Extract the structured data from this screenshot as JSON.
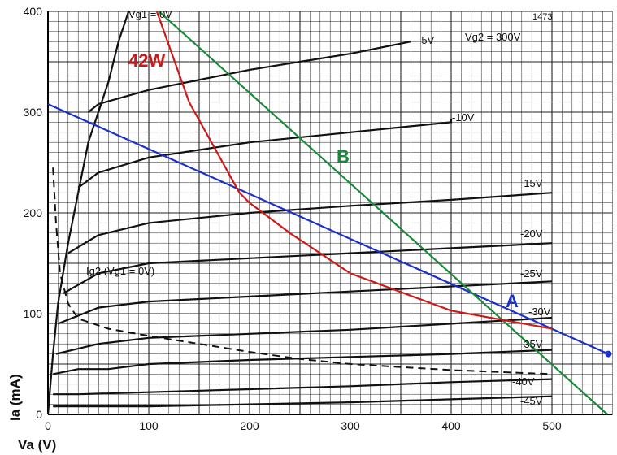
{
  "chart_data": {
    "type": "line",
    "xlabel": "Va (V)",
    "ylabel": "Ia (mA)",
    "xlim": [
      0,
      560
    ],
    "ylim": [
      0,
      400
    ],
    "x_ticks": [
      "0",
      "100",
      "200",
      "300",
      "400",
      "500"
    ],
    "y_ticks": [
      "0",
      "100",
      "200",
      "300",
      "400"
    ],
    "ref_number": "1473",
    "screen_voltage_label": "Vg2 = 300V",
    "grid": true,
    "characteristic_curves": [
      {
        "name": "Vg1 = 0V",
        "label_text": "Vg1 = 0V",
        "points": [
          [
            0,
            0
          ],
          [
            5,
            60
          ],
          [
            10,
            110
          ],
          [
            20,
            170
          ],
          [
            30,
            220
          ],
          [
            40,
            270
          ],
          [
            50,
            300
          ],
          [
            60,
            330
          ],
          [
            70,
            370
          ],
          [
            80,
            400
          ]
        ]
      },
      {
        "name": "-5V",
        "label_text": "-5V",
        "points": [
          [
            40,
            300
          ],
          [
            50,
            308
          ],
          [
            100,
            322
          ],
          [
            200,
            342
          ],
          [
            300,
            358
          ],
          [
            360,
            370
          ]
        ]
      },
      {
        "name": "-10V",
        "label_text": "-10V",
        "points": [
          [
            30,
            225
          ],
          [
            50,
            240
          ],
          [
            100,
            255
          ],
          [
            200,
            270
          ],
          [
            300,
            280
          ],
          [
            400,
            290
          ],
          [
            400,
            293
          ]
        ]
      },
      {
        "name": "-15V",
        "label_text": "-15V",
        "points": [
          [
            20,
            160
          ],
          [
            50,
            178
          ],
          [
            100,
            190
          ],
          [
            200,
            200
          ],
          [
            300,
            207
          ],
          [
            400,
            213
          ],
          [
            500,
            220
          ]
        ]
      },
      {
        "name": "-20V",
        "label_text": "-20V",
        "points": [
          [
            15,
            120
          ],
          [
            50,
            140
          ],
          [
            100,
            150
          ],
          [
            200,
            155
          ],
          [
            300,
            160
          ],
          [
            400,
            165
          ],
          [
            500,
            170
          ]
        ]
      },
      {
        "name": "-25V",
        "label_text": "-25V",
        "points": [
          [
            10,
            90
          ],
          [
            50,
            106
          ],
          [
            100,
            112
          ],
          [
            200,
            117
          ],
          [
            300,
            122
          ],
          [
            400,
            127
          ],
          [
            500,
            132
          ]
        ]
      },
      {
        "name": "-30V",
        "label_text": "-30V",
        "points": [
          [
            8,
            60
          ],
          [
            50,
            70
          ],
          [
            100,
            76
          ],
          [
            200,
            80
          ],
          [
            300,
            84
          ],
          [
            400,
            90
          ],
          [
            500,
            96
          ]
        ]
      },
      {
        "name": "-35V",
        "label_text": "-35V",
        "points": [
          [
            5,
            40
          ],
          [
            30,
            45
          ],
          [
            60,
            45
          ],
          [
            100,
            50
          ],
          [
            200,
            54
          ],
          [
            300,
            57
          ],
          [
            400,
            60
          ],
          [
            500,
            64
          ]
        ]
      },
      {
        "name": "-40V",
        "label_text": "-40V",
        "points": [
          [
            5,
            20
          ],
          [
            30,
            20
          ],
          [
            100,
            22
          ],
          [
            200,
            25
          ],
          [
            300,
            28
          ],
          [
            400,
            32
          ],
          [
            500,
            35
          ]
        ]
      },
      {
        "name": "-45V",
        "label_text": "-45V",
        "points": [
          [
            5,
            8
          ],
          [
            30,
            8
          ],
          [
            100,
            8
          ],
          [
            200,
            10
          ],
          [
            300,
            12
          ],
          [
            400,
            15
          ],
          [
            500,
            18
          ]
        ]
      }
    ],
    "screen_current_curve": {
      "name": "Ig2 (Vg1 = 0V)",
      "label_text": "Ig2 (Vg1 = 0V)",
      "points": [
        [
          5,
          245
        ],
        [
          8,
          190
        ],
        [
          12,
          140
        ],
        [
          20,
          110
        ],
        [
          30,
          95
        ],
        [
          60,
          85
        ],
        [
          100,
          78
        ],
        [
          150,
          70
        ],
        [
          200,
          62
        ],
        [
          250,
          55
        ],
        [
          300,
          50
        ],
        [
          400,
          44
        ],
        [
          500,
          40
        ]
      ]
    },
    "load_lines": [
      {
        "name": "A",
        "color": "#1a2fcc",
        "points": [
          [
            0,
            308
          ],
          [
            556,
            60
          ]
        ],
        "endpoint": [
          556,
          60
        ]
      },
      {
        "name": "B",
        "color": "#1a8a3a",
        "points": [
          [
            110,
            400
          ],
          [
            555,
            0
          ]
        ]
      },
      {
        "name": "42W",
        "color": "#cc1a1a",
        "points": [
          [
            108,
            400
          ],
          [
            140,
            310
          ],
          [
            190,
            220
          ],
          [
            200,
            210
          ],
          [
            240,
            180
          ],
          [
            300,
            140
          ],
          [
            400,
            103
          ],
          [
            500,
            85
          ]
        ]
      }
    ]
  }
}
